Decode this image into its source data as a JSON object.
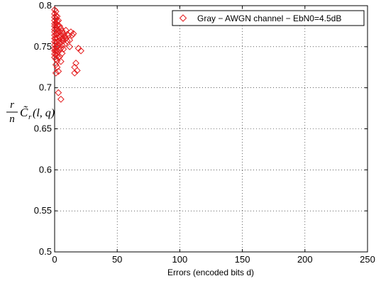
{
  "chart_data": {
    "type": "scatter",
    "xlabel": "Errors (encoded bits d)",
    "ylabel": {
      "numerator": "r",
      "denominator": "n",
      "expression": "C̃",
      "subscript": "r",
      "args": "(l, q)"
    },
    "xlim": [
      0,
      250
    ],
    "ylim": [
      0.5,
      0.8
    ],
    "xticks": [
      0,
      50,
      100,
      150,
      200,
      250
    ],
    "yticks": [
      0.5,
      0.55,
      0.6,
      0.65,
      0.7,
      0.75,
      0.8
    ],
    "grid": true,
    "legend_position": "top-right",
    "series": [
      {
        "name": "Gray − AWGN channel − EbN0=4.5dB",
        "marker": "diamond",
        "color": "#e41a1c",
        "points": [
          [
            0,
            0.795
          ],
          [
            0,
            0.79
          ],
          [
            0,
            0.786
          ],
          [
            0,
            0.782
          ],
          [
            0,
            0.778
          ],
          [
            0,
            0.775
          ],
          [
            0,
            0.771
          ],
          [
            0,
            0.768
          ],
          [
            0,
            0.764
          ],
          [
            0,
            0.76
          ],
          [
            0,
            0.756
          ],
          [
            0,
            0.752
          ],
          [
            0,
            0.748
          ],
          [
            0,
            0.745
          ],
          [
            0,
            0.741
          ],
          [
            0,
            0.737
          ],
          [
            1,
            0.793
          ],
          [
            1,
            0.788
          ],
          [
            1,
            0.784
          ],
          [
            1,
            0.779
          ],
          [
            1,
            0.774
          ],
          [
            1,
            0.77
          ],
          [
            1,
            0.765
          ],
          [
            1,
            0.76
          ],
          [
            1,
            0.755
          ],
          [
            1,
            0.75
          ],
          [
            1,
            0.745
          ],
          [
            1,
            0.74
          ],
          [
            1,
            0.735
          ],
          [
            1,
            0.728
          ],
          [
            1,
            0.718
          ],
          [
            2,
            0.787
          ],
          [
            2,
            0.781
          ],
          [
            2,
            0.776
          ],
          [
            2,
            0.771
          ],
          [
            2,
            0.766
          ],
          [
            2,
            0.761
          ],
          [
            2,
            0.756
          ],
          [
            2,
            0.75
          ],
          [
            2,
            0.745
          ],
          [
            2,
            0.739
          ],
          [
            2,
            0.733
          ],
          [
            2,
            0.725
          ],
          [
            3,
            0.782
          ],
          [
            3,
            0.776
          ],
          [
            3,
            0.77
          ],
          [
            3,
            0.763
          ],
          [
            3,
            0.757
          ],
          [
            3,
            0.751
          ],
          [
            3,
            0.744
          ],
          [
            3,
            0.737
          ],
          [
            3,
            0.72
          ],
          [
            4,
            0.775
          ],
          [
            4,
            0.768
          ],
          [
            4,
            0.761
          ],
          [
            4,
            0.754
          ],
          [
            4,
            0.746
          ],
          [
            4,
            0.738
          ],
          [
            5,
            0.772
          ],
          [
            5,
            0.764
          ],
          [
            5,
            0.756
          ],
          [
            5,
            0.748
          ],
          [
            5,
            0.732
          ],
          [
            6,
            0.769
          ],
          [
            6,
            0.76
          ],
          [
            6,
            0.752
          ],
          [
            6,
            0.742
          ],
          [
            7,
            0.766
          ],
          [
            7,
            0.757
          ],
          [
            7,
            0.747
          ],
          [
            7,
            0.76
          ],
          [
            8,
            0.763
          ],
          [
            8,
            0.753
          ],
          [
            9,
            0.76
          ],
          [
            9,
            0.77
          ],
          [
            10,
            0.757
          ],
          [
            10,
            0.765
          ],
          [
            11,
            0.764
          ],
          [
            12,
            0.758
          ],
          [
            12,
            0.75
          ],
          [
            13,
            0.768
          ],
          [
            14,
            0.764
          ],
          [
            15,
            0.766
          ],
          [
            16,
            0.718
          ],
          [
            16,
            0.725
          ],
          [
            17,
            0.73
          ],
          [
            18,
            0.721
          ],
          [
            19,
            0.748
          ],
          [
            21,
            0.745
          ],
          [
            3,
            0.694
          ],
          [
            5,
            0.686
          ]
        ]
      }
    ]
  }
}
